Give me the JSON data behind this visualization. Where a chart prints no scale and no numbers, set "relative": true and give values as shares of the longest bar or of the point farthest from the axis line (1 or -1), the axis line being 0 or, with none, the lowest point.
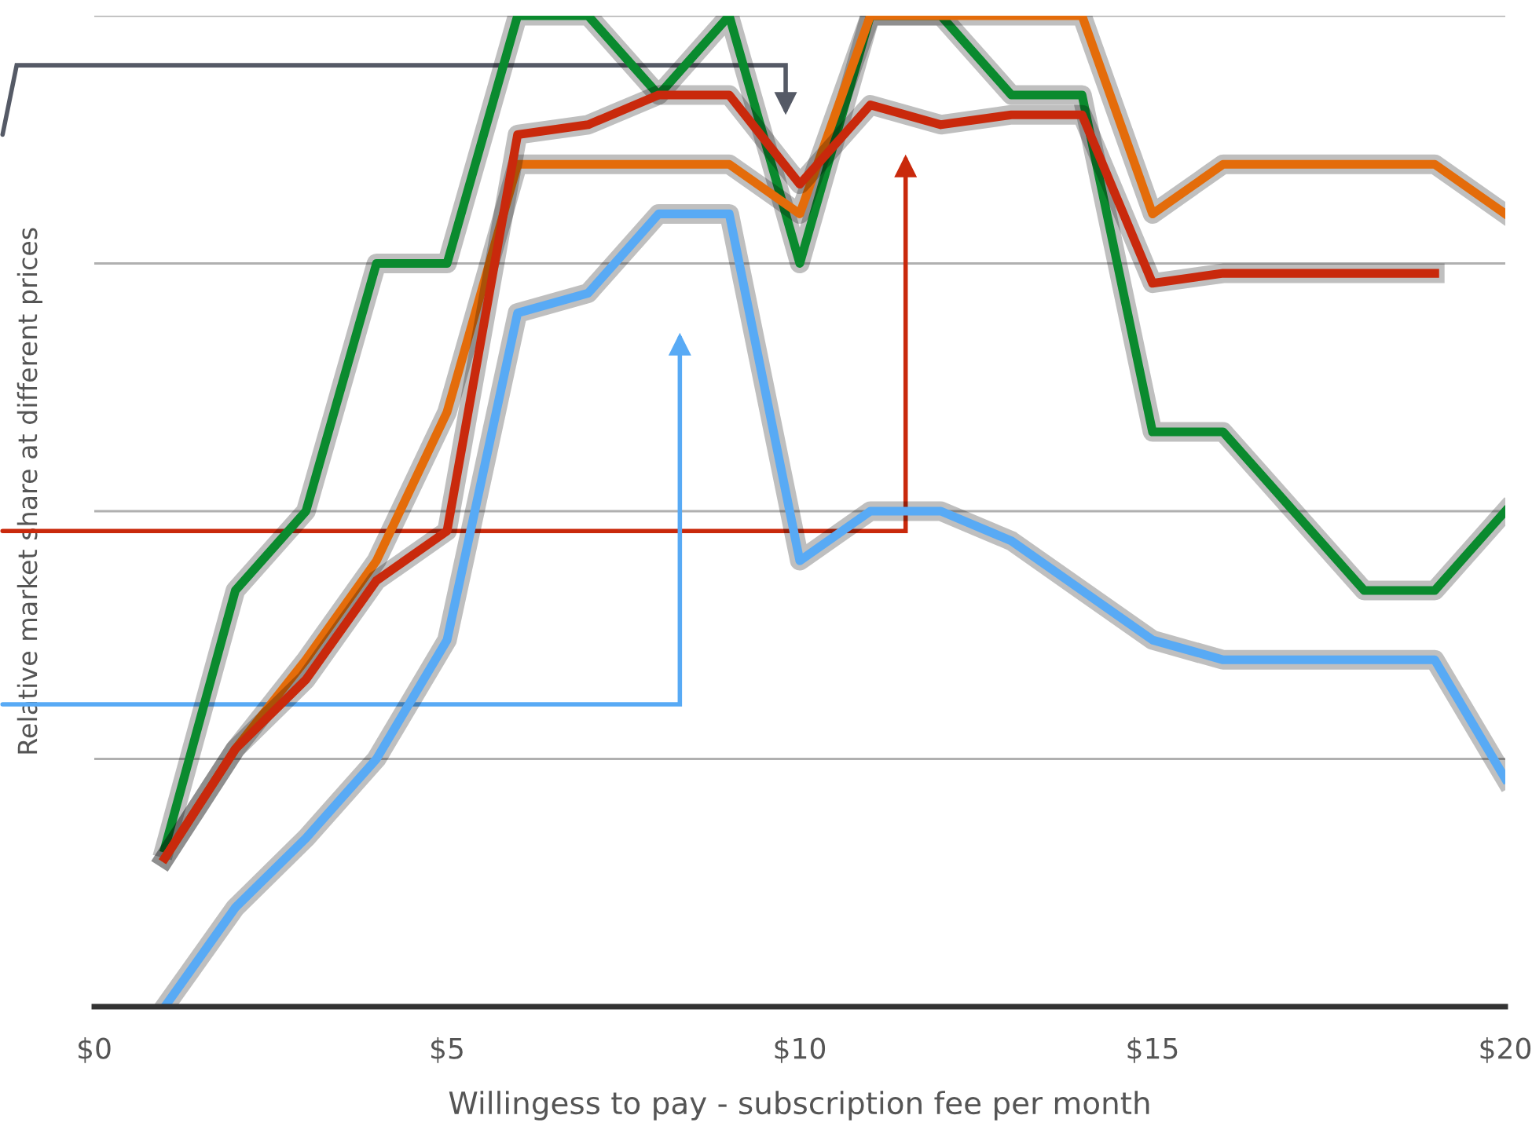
{
  "chart_data": {
    "type": "line",
    "relative": true,
    "xlabel": "Willingess to pay - subscription fee per month",
    "ylabel": "Relative market share at different prices",
    "x": [
      1,
      2,
      3,
      4,
      5,
      6,
      7,
      8,
      9,
      10,
      11,
      12,
      13,
      14,
      15,
      16,
      17,
      18,
      19,
      20
    ],
    "xlim": [
      0,
      20
    ],
    "xticks": [
      {
        "value": 0,
        "label": "$0"
      },
      {
        "value": 5,
        "label": "$5"
      },
      {
        "value": 10,
        "label": "$10"
      },
      {
        "value": 15,
        "label": "$15"
      },
      {
        "value": 20,
        "label": "$20"
      }
    ],
    "grid": "y",
    "line_style": "solid",
    "marker": "none",
    "series": [
      {
        "color": "#0a8a2e",
        "values": [
          0.16,
          0.42,
          0.5,
          0.75,
          0.75,
          1,
          1,
          0.92,
          1,
          0.75,
          1,
          1,
          0.92,
          0.92,
          0.58,
          0.58,
          0.5,
          0.42,
          0.42,
          0.5
        ]
      },
      {
        "color": "#e46c0a",
        "values": [
          0.15,
          0.26,
          0.35,
          0.45,
          0.6,
          0.85,
          0.85,
          0.85,
          0.85,
          0.8,
          1,
          1,
          1,
          1,
          0.8,
          0.85,
          0.85,
          0.85,
          0.85,
          0.8
        ]
      },
      {
        "color": "#c9290c",
        "values": [
          0.15,
          0.26,
          0.33,
          0.43,
          0.48,
          0.88,
          0.89,
          0.92,
          0.92,
          0.83,
          0.91,
          0.89,
          0.9,
          0.9,
          0.73,
          0.74,
          0.74,
          0.74,
          0.74,
          null
        ]
      },
      {
        "color": "#58aaf5",
        "values": [
          0,
          0.1,
          0.17,
          0.25,
          0.37,
          0.7,
          0.72,
          0.8,
          0.8,
          0.45,
          0.5,
          0.5,
          0.47,
          0.42,
          0.37,
          0.35,
          0.35,
          0.35,
          0.35,
          0.23
        ]
      }
    ]
  }
}
